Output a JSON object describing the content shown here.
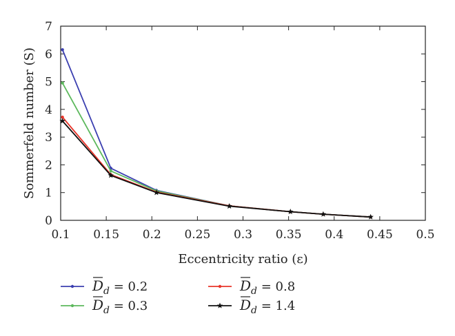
{
  "chart_data": {
    "type": "line",
    "xlabel": "Eccentricity ratio (ε)",
    "ylabel": "Sommerfeld number (S)",
    "xlim": [
      0.1,
      0.5
    ],
    "ylim": [
      0,
      7
    ],
    "xticks": [
      "0.1",
      "0.15",
      "0.2",
      "0.25",
      "0.3",
      "0.35",
      "0.4",
      "0.45",
      "0.5"
    ],
    "yticks": [
      "0",
      "1",
      "2",
      "3",
      "4",
      "5",
      "6",
      "7"
    ],
    "grid": false,
    "legend_position": "bottom",
    "series": [
      {
        "name": "D̄d = 0.2",
        "legend_value": "0.2",
        "color": "#3b3fb0",
        "marker": "dot",
        "x": [
          0.102,
          0.155,
          0.205,
          0.285,
          0.352,
          0.388,
          0.44
        ],
        "y": [
          6.15,
          1.88,
          1.08,
          0.52,
          0.31,
          0.22,
          0.12
        ]
      },
      {
        "name": "D̄d = 0.3",
        "legend_value": "0.3",
        "color": "#5cb85c",
        "marker": "dot",
        "x": [
          0.102,
          0.155,
          0.205,
          0.285,
          0.352,
          0.388,
          0.44
        ],
        "y": [
          4.95,
          1.78,
          1.06,
          0.52,
          0.31,
          0.22,
          0.12
        ]
      },
      {
        "name": "D̄d = 0.8",
        "legend_value": "0.8",
        "color": "#e8352a",
        "marker": "dot",
        "x": [
          0.102,
          0.155,
          0.205,
          0.285,
          0.352,
          0.388,
          0.44
        ],
        "y": [
          3.72,
          1.65,
          1.02,
          0.52,
          0.31,
          0.22,
          0.12
        ]
      },
      {
        "name": "D̄d = 1.4",
        "legend_value": "1.4",
        "color": "#111111",
        "marker": "star",
        "x": [
          0.102,
          0.155,
          0.205,
          0.285,
          0.352,
          0.388,
          0.44
        ],
        "y": [
          3.58,
          1.62,
          1.0,
          0.51,
          0.31,
          0.22,
          0.12
        ]
      }
    ]
  }
}
